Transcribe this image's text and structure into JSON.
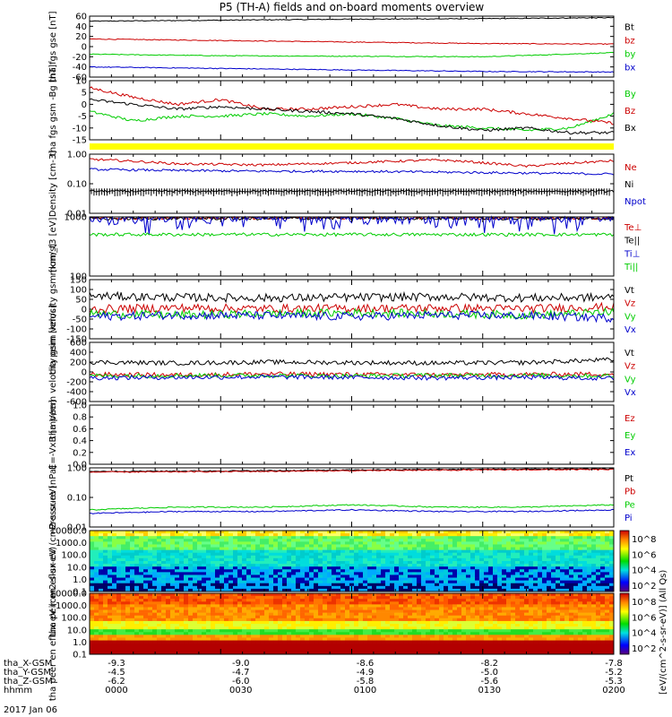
{
  "title": "P5 (TH-A) fields and on-board moments overview",
  "date_label": "2017 Jan 06",
  "colorbar_label": "[eV/(cm^2-s-sr-eV)] (All Qs)",
  "colorbar_ticks": [
    "10^8",
    "10^6",
    "10^4",
    "10^2"
  ],
  "colorbar_ticks2": [
    "10^8",
    "10^6",
    "10^4",
    "10^2"
  ],
  "row_labels": [
    "tha_X-GSM",
    "tha_Y-GSM",
    "tha_Z-GSM",
    "hhmm"
  ],
  "row_values": [
    [
      "-9.3",
      "-9.0",
      "-8.6",
      "-8.2",
      "-7.8"
    ],
    [
      "-4.5",
      "-4.7",
      "-4.9",
      "-5.0",
      "-5.2"
    ],
    [
      "-6.2",
      "-6.0",
      "-5.8",
      "-5.6",
      "-5.3"
    ],
    [
      "0000",
      "0030",
      "0100",
      "0130",
      "0200"
    ]
  ],
  "chart_data": [
    {
      "type": "line",
      "panel": "fgs",
      "ylabel": "tha fgs gse [nT]",
      "ylim": [
        -60,
        60
      ],
      "yticks": [
        "60",
        "40",
        "20",
        "0",
        "-20",
        "-40",
        "-60"
      ],
      "x": [
        0,
        30,
        60,
        90,
        120
      ],
      "series": [
        {
          "name": "Bt",
          "color": "#000000",
          "values": [
            50,
            52,
            54,
            55,
            57
          ]
        },
        {
          "name": "bz",
          "color": "#cc0000",
          "values": [
            15,
            12,
            9,
            6,
            5
          ]
        },
        {
          "name": "by",
          "color": "#00cc00",
          "values": [
            -15,
            -18,
            -19,
            -20,
            -12
          ]
        },
        {
          "name": "bx",
          "color": "#0000cc",
          "values": [
            -40,
            -43,
            -46,
            -49,
            -50
          ]
        }
      ]
    },
    {
      "type": "line",
      "panel": "fgs_gsm",
      "ylabel": "tha fgs gsm -Bg [nT]",
      "ylim": [
        -15,
        10
      ],
      "yticks": [
        "10",
        "5",
        "0",
        "-5",
        "-10",
        "-15"
      ],
      "x": [
        0,
        10,
        20,
        30,
        40,
        50,
        60,
        70,
        80,
        90,
        100,
        110,
        120
      ],
      "series": [
        {
          "name": "By",
          "color": "#00cc00",
          "values": [
            -3,
            -7,
            -5,
            -5,
            -4,
            -5,
            -4,
            -6,
            -9,
            -10,
            -11,
            -10,
            -4
          ]
        },
        {
          "name": "Bz",
          "color": "#cc0000",
          "values": [
            7,
            3,
            0,
            2,
            -2,
            -2,
            -1,
            0,
            -2,
            -2,
            -4,
            -6,
            -8
          ]
        },
        {
          "name": "Bx",
          "color": "#000000",
          "values": [
            2,
            0,
            -2,
            -1,
            -2,
            -3,
            -4,
            -6,
            -9,
            -11,
            -10,
            -12,
            -12
          ]
        }
      ]
    },
    {
      "type": "line",
      "panel": "density",
      "ylabel": "Density [cm-3]",
      "yscale": "log",
      "yticks": [
        "1.00",
        "0.10",
        "0.01"
      ],
      "x": [
        0,
        20,
        40,
        60,
        80,
        100,
        120
      ],
      "series": [
        {
          "name": "Ne",
          "color": "#cc0000",
          "values": [
            0.8,
            0.55,
            0.5,
            0.6,
            0.75,
            0.45,
            0.7
          ]
        },
        {
          "name": "Ni",
          "color": "#000000",
          "values": [
            0.06,
            0.06,
            0.06,
            0.06,
            0.06,
            0.06,
            0.06
          ]
        },
        {
          "name": "Npot",
          "color": "#0000cc",
          "values": [
            0.35,
            0.32,
            0.3,
            0.3,
            0.28,
            0.26,
            0.24
          ]
        }
      ]
    },
    {
      "type": "line",
      "panel": "temperature",
      "ylabel": "mom_t3 [eV]",
      "yscale": "log",
      "yticks": [
        "1000",
        "100"
      ],
      "x": [
        0,
        20,
        40,
        60,
        80,
        100,
        120
      ],
      "series": [
        {
          "name": "Te⊥",
          "color": "#cc0000",
          "values": [
            2200,
            2500,
            2400,
            2600,
            2500,
            2300,
            2400
          ]
        },
        {
          "name": "Te||",
          "color": "#000000",
          "values": [
            2000,
            2200,
            2100,
            2300,
            2200,
            2100,
            2200
          ]
        },
        {
          "name": "Ti⊥",
          "color": "#0000cc",
          "values": [
            400,
            500,
            450,
            500,
            480,
            420,
            460
          ]
        },
        {
          "name": "Ti||",
          "color": "#00cc00",
          "values": [
            70,
            70,
            70,
            70,
            70,
            70,
            70
          ]
        }
      ]
    },
    {
      "type": "line",
      "panel": "peim_velocity",
      "ylabel": "tha peim velocity gsm [km/s]",
      "ylim": [
        -100,
        100
      ],
      "yticks": [
        "150",
        "100",
        "50",
        "0",
        "-50",
        "-100",
        "-150"
      ],
      "x": [
        0,
        20,
        40,
        60,
        80,
        100,
        120
      ],
      "series": [
        {
          "name": "Vt",
          "color": "#000000",
          "values": [
            45,
            40,
            38,
            40,
            42,
            38,
            40
          ]
        },
        {
          "name": "Vz",
          "color": "#cc0000",
          "values": [
            0,
            5,
            2,
            3,
            4,
            2,
            8
          ]
        },
        {
          "name": "Vy",
          "color": "#00cc00",
          "values": [
            -15,
            -20,
            -15,
            -12,
            -15,
            -20,
            -10
          ]
        },
        {
          "name": "Vx",
          "color": "#0000cc",
          "values": [
            -25,
            -20,
            -22,
            -25,
            -20,
            -22,
            -30
          ]
        }
      ]
    },
    {
      "type": "line",
      "panel": "peem_velocity",
      "ylabel": "tha peem velocity gsm [km/s]",
      "ylim": [
        -600,
        600
      ],
      "yticks": [
        "600",
        "400",
        "200",
        "0",
        "-200",
        "-400",
        "-600"
      ],
      "x": [
        0,
        20,
        40,
        60,
        80,
        100,
        120
      ],
      "series": [
        {
          "name": "Vt",
          "color": "#000000",
          "values": [
            200,
            180,
            200,
            190,
            180,
            190,
            250
          ]
        },
        {
          "name": "Vz",
          "color": "#cc0000",
          "values": [
            -50,
            -60,
            -40,
            -50,
            -60,
            -50,
            -40
          ]
        },
        {
          "name": "Vy",
          "color": "#00cc00",
          "values": [
            -80,
            -70,
            -70,
            -80,
            -70,
            -70,
            -80
          ]
        },
        {
          "name": "Vx",
          "color": "#0000cc",
          "values": [
            -120,
            -110,
            -100,
            -110,
            -120,
            -110,
            -130
          ]
        }
      ]
    },
    {
      "type": "line",
      "panel": "efield",
      "ylabel": "E=-VxB [mV/m]",
      "ylim": [
        0,
        1
      ],
      "yticks": [
        "1.0",
        "0.8",
        "0.6",
        "0.4",
        "0.2",
        "0.0"
      ],
      "x": [],
      "series": [
        {
          "name": "Ez",
          "color": "#cc0000",
          "values": []
        },
        {
          "name": "Ey",
          "color": "#00cc00",
          "values": []
        },
        {
          "name": "Ex",
          "color": "#0000cc",
          "values": []
        }
      ]
    },
    {
      "type": "line",
      "panel": "pressure",
      "ylabel": "Pressure [nPa]",
      "yscale": "log",
      "yticks": [
        "1.00",
        "0.10",
        "0.01"
      ],
      "x": [
        0,
        20,
        40,
        60,
        80,
        100,
        120
      ],
      "series": [
        {
          "name": "Pt",
          "color": "#000000",
          "values": [
            0.9,
            0.92,
            0.95,
            1.0,
            1.05,
            1.08,
            1.1
          ]
        },
        {
          "name": "Pb",
          "color": "#cc0000",
          "values": [
            0.85,
            0.87,
            0.9,
            0.95,
            1.0,
            1.03,
            1.05
          ]
        },
        {
          "name": "Pe",
          "color": "#00cc00",
          "values": [
            0.04,
            0.05,
            0.05,
            0.06,
            0.05,
            0.05,
            0.06
          ]
        },
        {
          "name": "Pi",
          "color": "#0000cc",
          "values": [
            0.03,
            0.035,
            0.035,
            0.04,
            0.035,
            0.035,
            0.04
          ]
        }
      ]
    },
    {
      "type": "heatmap",
      "panel": "peir_spectrogram",
      "ylabel": "tha peir en eflux eV (cm2-s-sr-eV)",
      "yscale": "log",
      "yticks": [
        "10000.0",
        "1000.0",
        "100.0",
        "10.0",
        "1.0",
        "0.1"
      ]
    },
    {
      "type": "heatmap",
      "panel": "peer_spectrogram",
      "ylabel": "tha peer en eflux eV (cm2-s-sr-eV)",
      "yscale": "log",
      "yticks": [
        "10000.0",
        "1000.0",
        "100.0",
        "10.0",
        "1.0",
        "0.1"
      ]
    }
  ]
}
